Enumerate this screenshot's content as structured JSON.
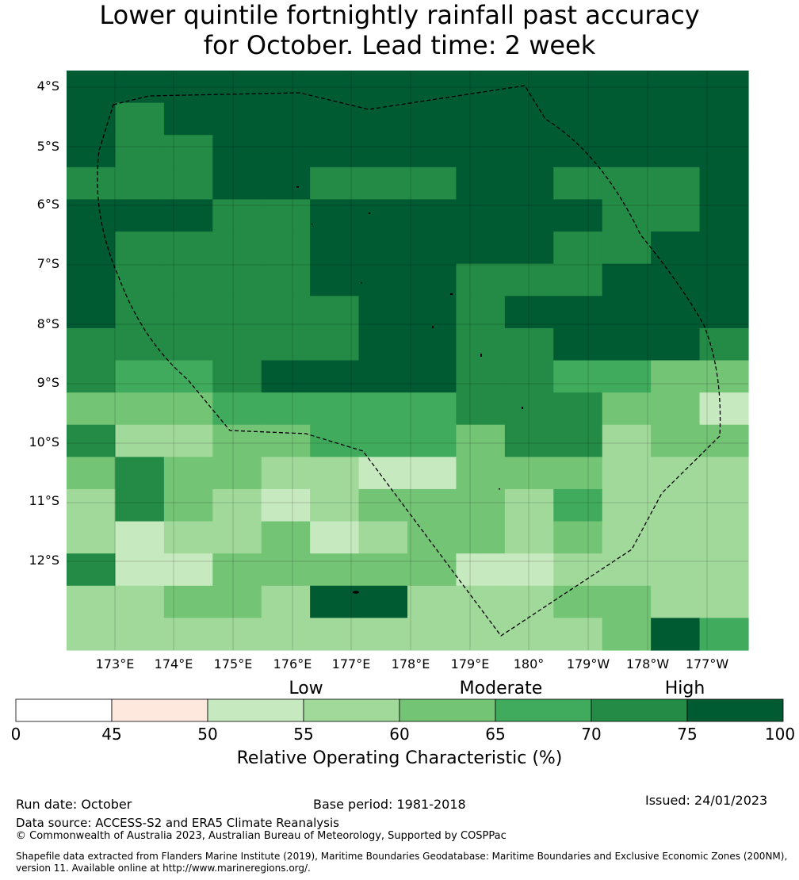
{
  "title_line1": "Lower quintile fortnightly rainfall past accuracy",
  "title_line2": "for October. Lead time: 2 week",
  "lat_labels": [
    "4°S",
    "5°S",
    "6°S",
    "7°S",
    "8°S",
    "9°S",
    "10°S",
    "11°S",
    "12°S"
  ],
  "lon_labels": [
    "173°E",
    "174°E",
    "175°E",
    "176°E",
    "177°E",
    "178°E",
    "179°E",
    "180°",
    "179°W",
    "178°W",
    "177°W"
  ],
  "categories": [
    "Low",
    "Moderate",
    "High"
  ],
  "colorbar": {
    "ticks": [
      "0",
      "45",
      "50",
      "55",
      "60",
      "65",
      "70",
      "75",
      "100"
    ],
    "colors": [
      "#ffffff",
      "#fee8dd",
      "#c7e9c0",
      "#a1d99b",
      "#74c476",
      "#41ab5d",
      "#238b45",
      "#005a32"
    ],
    "title": "Relative Operating Characteristic (%)"
  },
  "grid_colors": {
    "50-55": "#c7e9c0",
    "55-60": "#a1d99b",
    "60-65": "#74c476",
    "65-70": "#41ab5d",
    "70-75": "#238b45",
    "75-100": "#005a32"
  },
  "grid_rows": [
    "88888888888888",
    "87888888888888",
    "87788888888888",
    "77788777887778",
    "88877888888778",
    "87777888887788",
    "87777888777888",
    "87777788788888",
    "77777788778887",
    "76678888776655",
    "55566666777553",
    "74455666577455",
    "57554433555444",
    "47543455546444",
    "43445345545444",
    "73355555334444",
    "44554884445544",
    "44444444444586"
  ],
  "footer": {
    "run_date": "Run date: October",
    "base_period": "Base period: 1981-2018",
    "issued": "Issued: 24/01/2023",
    "data_source": "Data source: ACCESS-S2 and ERA5 Climate Reanalysis",
    "copyright": "© Commonwealth of Australia 2023, Australian Bureau of Meteorology, Supported by COSPPac",
    "shapefile_1": "Shapefile data extracted from Flanders Marine Institute (2019), Maritime Boundaries Geodatabase: Maritime Boundaries and Exclusive Economic Zones (200NM),",
    "shapefile_2": "version 11. Available online at http://www.marineregions.org/."
  }
}
